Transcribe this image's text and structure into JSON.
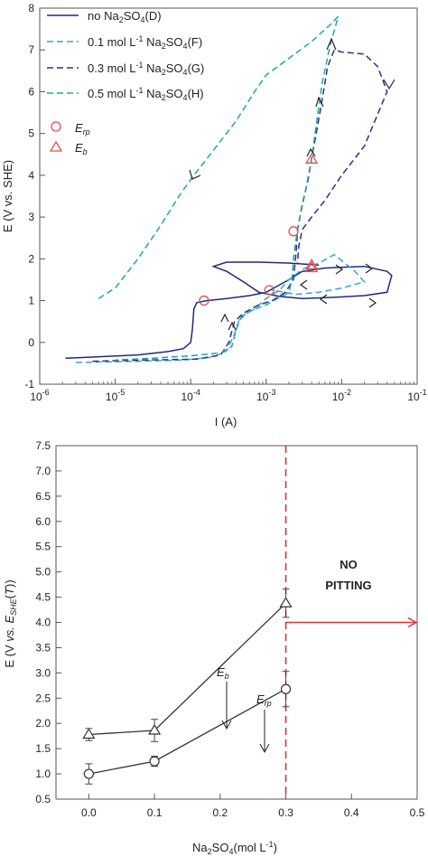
{
  "chart_data": [
    {
      "type": "line",
      "xscale": "log",
      "xlabel": "I (A)",
      "ylabel": "E (V vs. SHE)",
      "xlim": [
        1e-06,
        0.1
      ],
      "ylim": [
        -1,
        8
      ],
      "x_ticks": [
        1e-06,
        1e-05,
        0.0001,
        0.001,
        0.01,
        0.1
      ],
      "y_ticks": [
        -1,
        0,
        1,
        2,
        3,
        4,
        5,
        6,
        7,
        8
      ],
      "legend_position": "top-left",
      "series": [
        {
          "name": "no Na2SO4(D)",
          "color": "#1f2a7a",
          "dash": "solid",
          "points": [
            [
              2.2e-06,
              -0.38
            ],
            [
              5e-06,
              -0.35
            ],
            [
              2e-05,
              -0.3
            ],
            [
              5e-05,
              -0.22
            ],
            [
              8e-05,
              -0.15
            ],
            [
              0.0001,
              0.0
            ],
            [
              0.000105,
              0.3
            ],
            [
              0.00011,
              0.8
            ],
            [
              0.00012,
              0.95
            ],
            [
              0.00016,
              1.0
            ],
            [
              0.0003,
              1.05
            ],
            [
              0.0006,
              1.12
            ],
            [
              0.001,
              1.2
            ],
            [
              0.002,
              1.5
            ],
            [
              0.003,
              1.7
            ],
            [
              0.006,
              1.78
            ],
            [
              0.01,
              1.8
            ],
            [
              0.02,
              1.82
            ],
            [
              0.04,
              1.7
            ],
            [
              0.046,
              1.6
            ],
            [
              0.04,
              1.2
            ],
            [
              0.02,
              1.12
            ],
            [
              0.008,
              1.08
            ],
            [
              0.003,
              1.05
            ],
            [
              0.0015,
              1.1
            ],
            [
              0.0008,
              1.2
            ],
            [
              0.0005,
              1.45
            ],
            [
              0.0003,
              1.7
            ],
            [
              0.0002,
              1.82
            ],
            [
              0.0003,
              1.92
            ],
            [
              0.0008,
              1.92
            ],
            [
              0.002,
              1.9
            ],
            [
              0.005,
              1.85
            ]
          ]
        },
        {
          "name": "0.1 mol L-1 Na2SO4(F)",
          "color": "#3aa1de",
          "dash": "dashed",
          "points": [
            [
              3e-06,
              -0.48
            ],
            [
              2e-05,
              -0.45
            ],
            [
              8e-05,
              -0.42
            ],
            [
              0.0002,
              -0.35
            ],
            [
              0.0003,
              -0.2
            ],
            [
              0.00038,
              0.2
            ],
            [
              0.00045,
              0.6
            ],
            [
              0.0007,
              0.8
            ],
            [
              0.001,
              1.05
            ],
            [
              0.0015,
              1.25
            ],
            [
              0.002,
              1.5
            ],
            [
              0.003,
              1.75
            ],
            [
              0.005,
              1.9
            ],
            [
              0.008,
              2.1
            ],
            [
              0.015,
              1.7
            ],
            [
              0.02,
              1.45
            ],
            [
              0.01,
              1.3
            ],
            [
              0.005,
              1.2
            ],
            [
              0.0025,
              1.15
            ],
            [
              0.0012,
              1.25
            ]
          ]
        },
        {
          "name": "0.3 mol L-1 Na2SO4(G)",
          "color": "#2b2e8c",
          "dash": "dashed",
          "points": [
            [
              5e-06,
              -0.45
            ],
            [
              3e-05,
              -0.42
            ],
            [
              0.00012,
              -0.4
            ],
            [
              0.00025,
              -0.3
            ],
            [
              0.00032,
              0.0
            ],
            [
              0.00038,
              0.5
            ],
            [
              0.0005,
              0.7
            ],
            [
              0.0008,
              0.9
            ],
            [
              0.0012,
              1.0
            ],
            [
              0.0018,
              1.2
            ],
            [
              0.0023,
              1.5
            ],
            [
              0.0025,
              2.2
            ],
            [
              0.0026,
              2.7
            ],
            [
              0.003,
              3.3
            ],
            [
              0.0036,
              3.9
            ],
            [
              0.004,
              4.4
            ],
            [
              0.0046,
              5.0
            ],
            [
              0.0055,
              5.8
            ],
            [
              0.0065,
              6.6
            ],
            [
              0.008,
              7.0
            ],
            [
              0.01,
              6.95
            ],
            [
              0.02,
              6.9
            ],
            [
              0.03,
              6.6
            ],
            [
              0.04,
              6.0
            ],
            [
              0.02,
              4.7
            ],
            [
              0.01,
              4.0
            ],
            [
              0.006,
              3.4
            ],
            [
              0.004,
              3.0
            ],
            [
              0.003,
              2.7
            ],
            [
              0.0027,
              2.3
            ],
            [
              0.0026,
              1.9
            ]
          ]
        },
        {
          "name": "0.5 mol L-1 Na2SO4(H)",
          "color": "#1fa7a3",
          "dash": "dashed",
          "points": [
            [
              6e-06,
              1.05
            ],
            [
              1e-05,
              1.3
            ],
            [
              2e-05,
              2.0
            ],
            [
              4e-05,
              2.8
            ],
            [
              7e-05,
              3.5
            ],
            [
              0.0001,
              3.9
            ],
            [
              0.0002,
              4.6
            ],
            [
              0.0004,
              5.3
            ],
            [
              0.0007,
              6.0
            ],
            [
              0.001,
              6.4
            ],
            [
              0.002,
              6.8
            ],
            [
              0.004,
              7.2
            ],
            [
              0.007,
              7.6
            ],
            [
              0.009,
              7.8
            ],
            [
              0.007,
              7.1
            ],
            [
              0.0055,
              6.2
            ],
            [
              0.0046,
              5.2
            ],
            [
              0.004,
              4.4
            ],
            [
              0.0033,
              3.6
            ],
            [
              0.0028,
              3.0
            ],
            [
              0.0025,
              2.5
            ],
            [
              0.0023,
              2.0
            ],
            [
              0.0022,
              1.5
            ],
            [
              0.002,
              1.2
            ],
            [
              0.0016,
              1.1
            ],
            [
              0.001,
              0.9
            ],
            [
              0.0006,
              0.75
            ],
            [
              0.00045,
              0.55
            ],
            [
              0.0004,
              0.3
            ],
            [
              0.00035,
              -0.1
            ],
            [
              0.00025,
              -0.25
            ],
            [
              0.0001,
              -0.32
            ],
            [
              3e-05,
              -0.38
            ],
            [
              1e-05,
              -0.42
            ]
          ]
        }
      ],
      "markers": [
        {
          "name": "Erp",
          "shape": "circle",
          "color": "#e05050",
          "points": [
            [
              0.00015,
              1.0
            ],
            [
              0.0011,
              1.25
            ],
            [
              0.0023,
              2.66
            ]
          ]
        },
        {
          "name": "Eb",
          "shape": "triangle",
          "color": "#e05050",
          "points": [
            [
              0.004,
              1.78
            ],
            [
              0.004,
              1.85
            ],
            [
              0.004,
              4.38
            ]
          ]
        }
      ],
      "legend": {
        "entries": [
          {
            "label": "no Na",
            "sub": "2",
            "mid": "SO",
            "sub2": "4",
            "tail": "(D)"
          },
          {
            "label": "0.1 mol L",
            "sup": "-1",
            "mid": " Na",
            "sub": "2",
            "mid2": "SO",
            "sub2": "4",
            "tail": "(F)"
          },
          {
            "label": "0.3 mol L",
            "sup": "-1",
            "mid": " Na",
            "sub": "2",
            "mid2": "SO",
            "sub2": "4",
            "tail": "(G)"
          },
          {
            "label": "0.5 mol L",
            "sup": "-1",
            "mid": " Na",
            "sub": "2",
            "mid2": "SO",
            "sub2": "4",
            "tail": "(H)"
          }
        ],
        "marker_labels": [
          {
            "main": "E",
            "sub": "rp"
          },
          {
            "main": "E",
            "sub": "b"
          }
        ]
      }
    },
    {
      "type": "line",
      "xlabel": "Na2SO4(mol L-1)",
      "ylabel": "E (V vs. ESHE(T))",
      "xlim": [
        -0.05,
        0.5
      ],
      "ylim": [
        0.5,
        7.5
      ],
      "x_ticks": [
        0.0,
        0.1,
        0.2,
        0.3,
        0.4,
        0.5
      ],
      "y_ticks": [
        0.5,
        1.0,
        1.5,
        2.0,
        2.5,
        3.0,
        3.5,
        4.0,
        4.5,
        5.0,
        5.5,
        6.0,
        6.5,
        7.0,
        7.5
      ],
      "series": [
        {
          "name": "Eb",
          "marker": "triangle",
          "x": [
            0.0,
            0.1,
            0.3
          ],
          "y": [
            1.78,
            1.86,
            4.38
          ],
          "err": [
            0.12,
            0.22,
            0.28
          ]
        },
        {
          "name": "Erp",
          "marker": "circle",
          "x": [
            0.0,
            0.1,
            0.3
          ],
          "y": [
            1.0,
            1.25,
            2.68
          ],
          "err": [
            0.2,
            0.1,
            0.35
          ]
        }
      ],
      "vline": {
        "x": 0.3,
        "color": "#e03030"
      },
      "arrow": {
        "y": 4.0,
        "from_x": 0.3,
        "to_x": 0.5,
        "color": "#e03030"
      },
      "annotation": {
        "line1": "NO",
        "line2": "PITTING"
      },
      "labels": {
        "eb": {
          "main": "E",
          "sub": "b"
        },
        "erp": {
          "main": "E",
          "sub": "rp"
        }
      }
    }
  ]
}
